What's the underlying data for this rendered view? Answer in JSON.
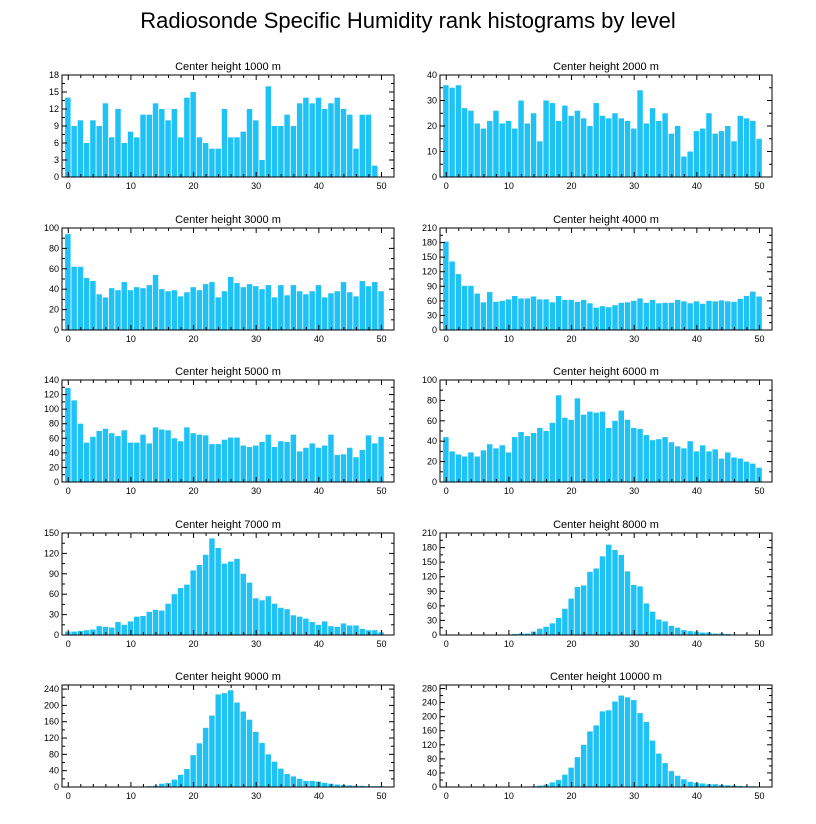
{
  "title": "Radiosonde Specific Humidity rank histograms by level",
  "colors": {
    "bar": "#1ec2f5",
    "axis": "#000000",
    "bar_edge": "#ffffff"
  },
  "chart_data": [
    {
      "type": "bar",
      "title": "Center height 1000 m",
      "xlim": [
        -1,
        52
      ],
      "ylim": [
        0,
        18
      ],
      "xticks": [
        0,
        10,
        20,
        30,
        40,
        50
      ],
      "yticks": [
        0,
        3,
        6,
        9,
        12,
        15,
        18
      ],
      "values": [
        14,
        9,
        10,
        6,
        10,
        9,
        13,
        7,
        12,
        6,
        8,
        7,
        11,
        11,
        13,
        12,
        10,
        12,
        7,
        14,
        15,
        7,
        6,
        5,
        5,
        12,
        7,
        7,
        8,
        12,
        10,
        3,
        16,
        9,
        9,
        11,
        9,
        13,
        14,
        13,
        14,
        12,
        13,
        14,
        12,
        11,
        5,
        11,
        11,
        2
      ],
      "xlabel": "",
      "ylabel": ""
    },
    {
      "type": "bar",
      "title": "Center height 2000 m",
      "xlim": [
        -1,
        52
      ],
      "ylim": [
        0,
        40
      ],
      "xticks": [
        0,
        10,
        20,
        30,
        40,
        50
      ],
      "yticks": [
        0,
        10,
        20,
        30,
        40
      ],
      "values": [
        36,
        35,
        36,
        27,
        26,
        21,
        19,
        22,
        26,
        21,
        22,
        19,
        30,
        21,
        25,
        14,
        30,
        29,
        22,
        28,
        24,
        26,
        23,
        20,
        29,
        24,
        23,
        25,
        23,
        22,
        19,
        34,
        21,
        27,
        22,
        25,
        17,
        20,
        8,
        10,
        18,
        19,
        25,
        17,
        18,
        20,
        14,
        24,
        23,
        22,
        15
      ],
      "xlabel": "",
      "ylabel": ""
    },
    {
      "type": "bar",
      "title": "Center height 3000 m",
      "xlim": [
        -1,
        52
      ],
      "ylim": [
        0,
        100
      ],
      "xticks": [
        0,
        10,
        20,
        30,
        40,
        50
      ],
      "yticks": [
        0,
        20,
        40,
        60,
        80,
        100
      ],
      "values": [
        94,
        62,
        62,
        51,
        48,
        35,
        32,
        41,
        39,
        47,
        39,
        42,
        41,
        44,
        54,
        40,
        38,
        39,
        33,
        37,
        42,
        39,
        45,
        47,
        32,
        38,
        52,
        46,
        42,
        45,
        43,
        40,
        44,
        32,
        44,
        34,
        44,
        38,
        35,
        38,
        44,
        32,
        36,
        38,
        47,
        37,
        33,
        48,
        43,
        47,
        38
      ],
      "xlabel": "",
      "ylabel": ""
    },
    {
      "type": "bar",
      "title": "Center height 4000 m",
      "xlim": [
        -1,
        52
      ],
      "ylim": [
        0,
        210
      ],
      "xticks": [
        0,
        10,
        20,
        30,
        40,
        50
      ],
      "yticks": [
        0,
        30,
        60,
        90,
        120,
        150,
        180,
        210
      ],
      "values": [
        182,
        141,
        115,
        91,
        91,
        75,
        57,
        78,
        58,
        60,
        63,
        70,
        65,
        65,
        69,
        63,
        63,
        57,
        70,
        62,
        62,
        58,
        62,
        55,
        46,
        49,
        47,
        51,
        56,
        57,
        60,
        65,
        56,
        62,
        55,
        56,
        56,
        62,
        59,
        55,
        59,
        54,
        60,
        59,
        61,
        59,
        58,
        64,
        70,
        79,
        69
      ],
      "xlabel": "",
      "ylabel": ""
    },
    {
      "type": "bar",
      "title": "Center height 5000 m",
      "xlim": [
        -1,
        52
      ],
      "ylim": [
        0,
        140
      ],
      "xticks": [
        0,
        10,
        20,
        30,
        40,
        50
      ],
      "yticks": [
        0,
        20,
        40,
        60,
        80,
        100,
        120,
        140
      ],
      "values": [
        129,
        112,
        80,
        54,
        62,
        70,
        73,
        67,
        63,
        71,
        54,
        54,
        65,
        53,
        75,
        72,
        71,
        60,
        56,
        75,
        67,
        65,
        64,
        52,
        52,
        58,
        61,
        61,
        50,
        48,
        50,
        55,
        65,
        48,
        56,
        55,
        65,
        42,
        47,
        53,
        47,
        50,
        65,
        37,
        38,
        47,
        34,
        44,
        64,
        53,
        62
      ],
      "xlabel": "",
      "ylabel": ""
    },
    {
      "type": "bar",
      "title": "Center height 6000 m",
      "xlim": [
        -1,
        52
      ],
      "ylim": [
        0,
        100
      ],
      "xticks": [
        0,
        10,
        20,
        30,
        40,
        50
      ],
      "yticks": [
        0,
        20,
        40,
        60,
        80,
        100
      ],
      "values": [
        44,
        30,
        27,
        25,
        29,
        25,
        31,
        37,
        33,
        36,
        29,
        44,
        49,
        45,
        48,
        53,
        50,
        58,
        85,
        63,
        61,
        82,
        66,
        69,
        68,
        69,
        53,
        60,
        70,
        61,
        53,
        52,
        46,
        41,
        42,
        44,
        39,
        35,
        33,
        40,
        30,
        36,
        30,
        32,
        23,
        29,
        24,
        23,
        20,
        18,
        14
      ],
      "xlabel": "",
      "ylabel": ""
    },
    {
      "type": "bar",
      "title": "Center height 7000 m",
      "xlim": [
        -1,
        52
      ],
      "ylim": [
        0,
        150
      ],
      "xticks": [
        0,
        10,
        20,
        30,
        40,
        50
      ],
      "yticks": [
        0,
        30,
        60,
        90,
        120,
        150
      ],
      "values": [
        5,
        5,
        6,
        7,
        8,
        13,
        12,
        11,
        19,
        15,
        20,
        27,
        28,
        34,
        37,
        36,
        46,
        60,
        69,
        74,
        95,
        103,
        118,
        142,
        128,
        105,
        108,
        112,
        90,
        77,
        54,
        51,
        57,
        46,
        40,
        38,
        29,
        27,
        24,
        19,
        15,
        20,
        13,
        12,
        17,
        14,
        14,
        9,
        7,
        7,
        4
      ],
      "xlabel": "",
      "ylabel": ""
    },
    {
      "type": "bar",
      "title": "Center height 8000 m",
      "xlim": [
        -1,
        52
      ],
      "ylim": [
        0,
        210
      ],
      "xticks": [
        0,
        10,
        20,
        30,
        40,
        50
      ],
      "yticks": [
        0,
        30,
        60,
        90,
        120,
        150,
        180,
        210
      ],
      "values": [
        0,
        0,
        0,
        0,
        0,
        0,
        0,
        0,
        0,
        0,
        1,
        2,
        3,
        3,
        7,
        13,
        17,
        24,
        35,
        54,
        75,
        99,
        102,
        130,
        137,
        162,
        186,
        175,
        165,
        131,
        103,
        100,
        65,
        48,
        32,
        28,
        19,
        15,
        10,
        8,
        7,
        5,
        5,
        3,
        3,
        2,
        1,
        1,
        1,
        0,
        1
      ],
      "xlabel": "",
      "ylabel": ""
    },
    {
      "type": "bar",
      "title": "Center height 9000 m",
      "xlim": [
        -1,
        52
      ],
      "ylim": [
        0,
        250
      ],
      "xticks": [
        0,
        10,
        20,
        30,
        40,
        50
      ],
      "yticks": [
        0,
        40,
        80,
        120,
        160,
        200,
        240
      ],
      "values": [
        0,
        0,
        0,
        0,
        0,
        0,
        0,
        0,
        0,
        0,
        0,
        0,
        1,
        2,
        3,
        8,
        10,
        18,
        30,
        44,
        78,
        107,
        145,
        175,
        227,
        230,
        237,
        207,
        185,
        165,
        135,
        108,
        80,
        62,
        45,
        32,
        26,
        20,
        15,
        15,
        13,
        10,
        8,
        6,
        5,
        4,
        3,
        3,
        2,
        2,
        2
      ],
      "xlabel": "",
      "ylabel": ""
    },
    {
      "type": "bar",
      "title": "Center height 10000 m",
      "xlim": [
        -1,
        52
      ],
      "ylim": [
        0,
        290
      ],
      "xticks": [
        0,
        10,
        20,
        30,
        40,
        50
      ],
      "yticks": [
        0,
        40,
        80,
        120,
        160,
        200,
        240,
        280
      ],
      "values": [
        0,
        0,
        0,
        0,
        0,
        0,
        0,
        0,
        0,
        0,
        0,
        0,
        1,
        1,
        2,
        4,
        7,
        13,
        20,
        35,
        55,
        85,
        120,
        158,
        175,
        215,
        218,
        243,
        260,
        255,
        247,
        210,
        185,
        132,
        95,
        68,
        45,
        32,
        22,
        15,
        12,
        10,
        8,
        8,
        6,
        5,
        4,
        3,
        2,
        2,
        1
      ],
      "xlabel": "",
      "ylabel": ""
    }
  ]
}
